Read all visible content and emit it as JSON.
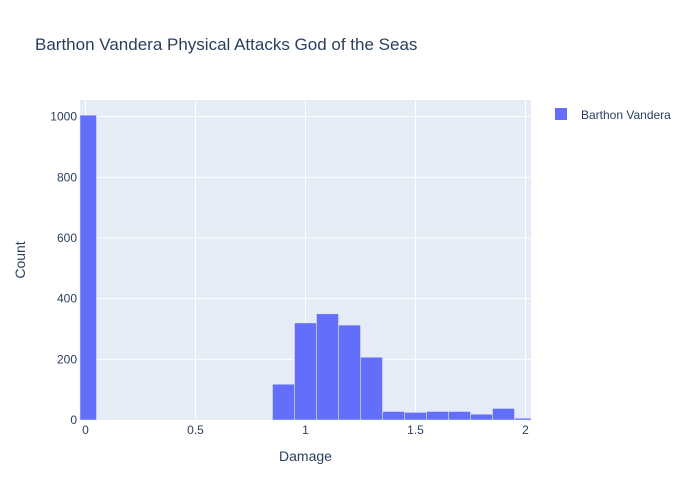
{
  "chart_data": {
    "type": "bar",
    "title": "Barthon Vandera Physical Attacks God of the Seas",
    "xlabel": "Damage",
    "ylabel": "Count",
    "xlim": [
      -0.025,
      2.025
    ],
    "ylim": [
      0,
      1055
    ],
    "x_ticks": [
      0,
      0.5,
      1,
      1.5,
      2
    ],
    "x_tick_labels": [
      "0",
      "0.5",
      "1",
      "1.5",
      "2"
    ],
    "y_ticks": [
      0,
      200,
      400,
      600,
      800,
      1000
    ],
    "y_tick_labels": [
      "0",
      "200",
      "400",
      "600",
      "800",
      "1000"
    ],
    "bin_width": 0.1,
    "bins": [
      {
        "x0": -0.025,
        "x1": 0.05,
        "count": 1005
      },
      {
        "x0": 0.85,
        "x1": 0.95,
        "count": 118
      },
      {
        "x0": 0.95,
        "x1": 1.05,
        "count": 320
      },
      {
        "x0": 1.05,
        "x1": 1.15,
        "count": 350
      },
      {
        "x0": 1.15,
        "x1": 1.25,
        "count": 313
      },
      {
        "x0": 1.25,
        "x1": 1.35,
        "count": 207
      },
      {
        "x0": 1.35,
        "x1": 1.45,
        "count": 28
      },
      {
        "x0": 1.45,
        "x1": 1.55,
        "count": 25
      },
      {
        "x0": 1.55,
        "x1": 1.65,
        "count": 28
      },
      {
        "x0": 1.65,
        "x1": 1.75,
        "count": 28
      },
      {
        "x0": 1.75,
        "x1": 1.85,
        "count": 19
      },
      {
        "x0": 1.85,
        "x1": 1.95,
        "count": 38
      },
      {
        "x0": 1.95,
        "x1": 2.025,
        "count": 6
      }
    ],
    "series": [
      {
        "name": "Barthon Vandera",
        "color": "#636efa"
      }
    ],
    "grid": true,
    "legend_position": "top-right",
    "plot_background": "#e5ecf6"
  }
}
